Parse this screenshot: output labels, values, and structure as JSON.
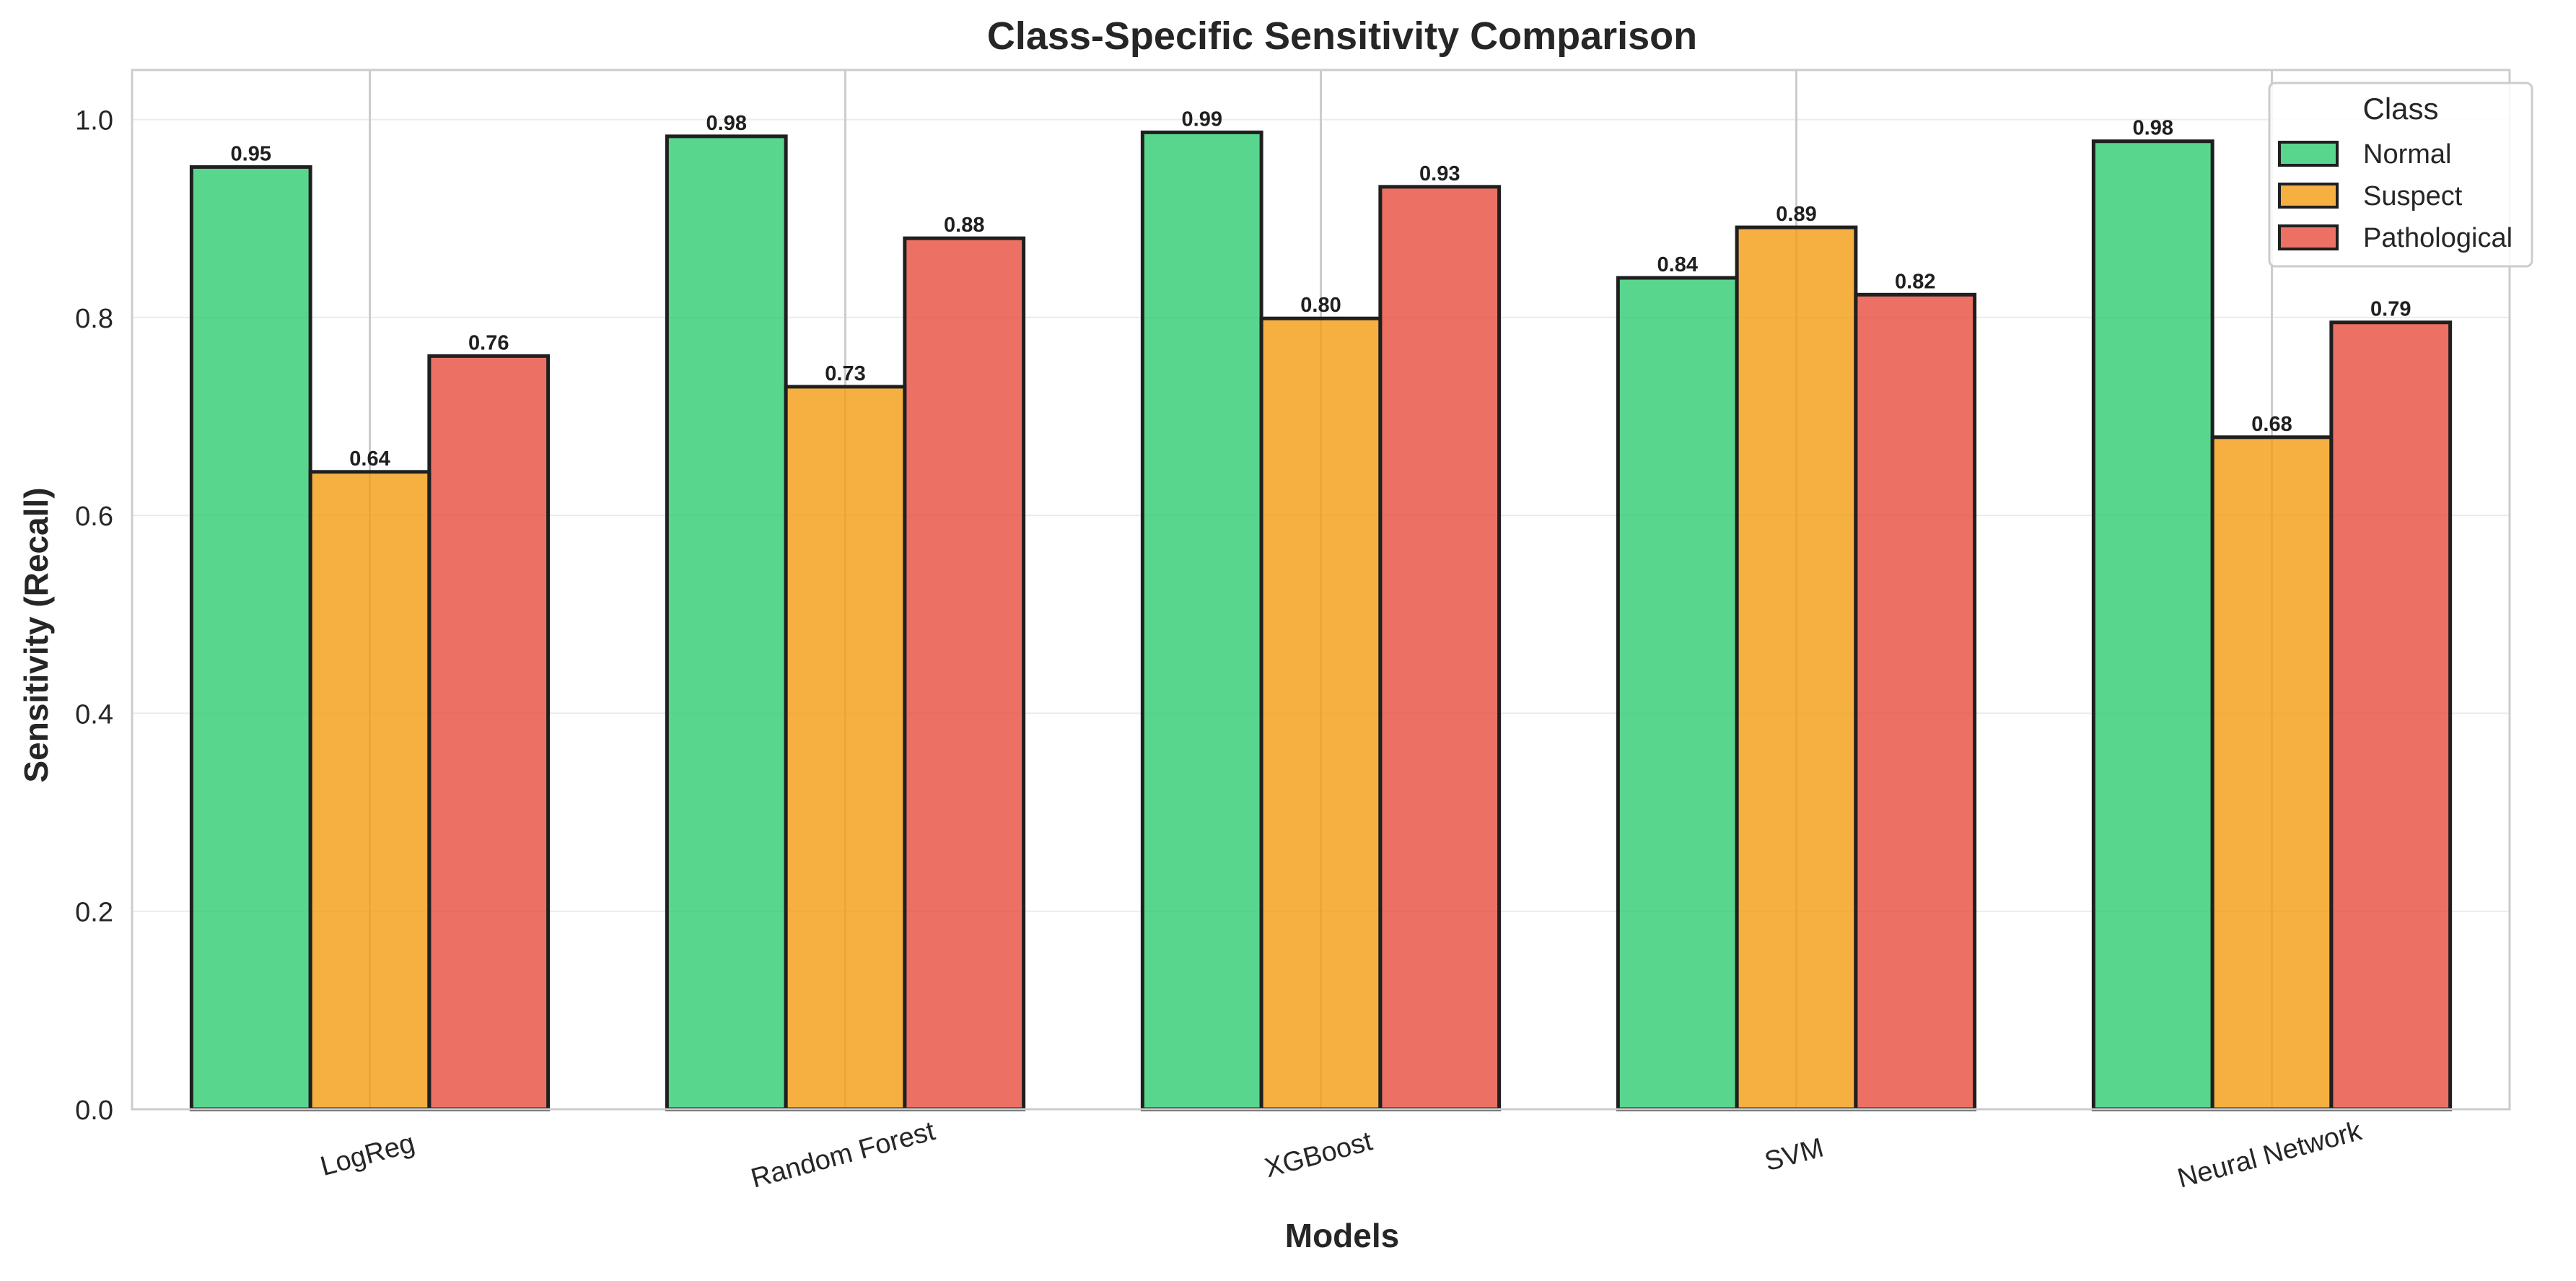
{
  "chart_data": {
    "type": "bar",
    "title": "Class-Specific Sensitivity Comparison",
    "xlabel": "Models",
    "ylabel": "Sensitivity (Recall)",
    "categories": [
      "LogReg",
      "Random Forest",
      "XGBoost",
      "SVM",
      "Neural Network"
    ],
    "series": [
      {
        "name": "Normal",
        "color": "#2ecc71",
        "values": [
          0.952,
          0.983,
          0.987,
          0.84,
          0.978
        ],
        "labels": [
          "0.95",
          "0.98",
          "0.99",
          "0.84",
          "0.98"
        ]
      },
      {
        "name": "Suspect",
        "color": "#f39c12",
        "values": [
          0.644,
          0.73,
          0.799,
          0.891,
          0.679
        ],
        "labels": [
          "0.64",
          "0.73",
          "0.80",
          "0.89",
          "0.68"
        ]
      },
      {
        "name": "Pathological",
        "color": "#e74c3c",
        "values": [
          0.761,
          0.88,
          0.932,
          0.823,
          0.795
        ],
        "labels": [
          "0.76",
          "0.88",
          "0.93",
          "0.82",
          "0.79"
        ]
      }
    ],
    "ylim": [
      0,
      1.05
    ],
    "yticks": [
      "0.0",
      "0.2",
      "0.4",
      "0.6",
      "0.8",
      "1.0"
    ],
    "ytick_values": [
      0,
      0.2,
      0.4,
      0.6,
      0.8,
      1.0
    ],
    "legend_title": "Class",
    "legend_position": "top-right",
    "grid": true
  }
}
